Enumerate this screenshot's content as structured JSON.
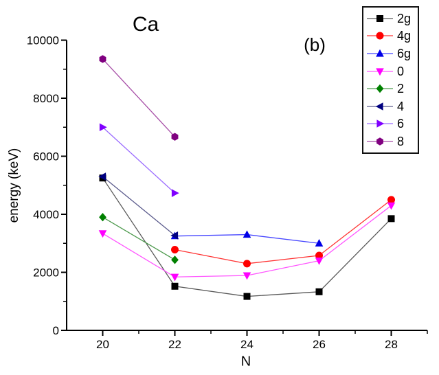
{
  "figure": {
    "title": "Ca",
    "panel_label": "(b)"
  },
  "chart_data": {
    "type": "line",
    "title": "Ca",
    "panel_label": "(b)",
    "xlabel": "N",
    "ylabel": "energy (keV)",
    "xlim": [
      19,
      29
    ],
    "ylim": [
      0,
      10000
    ],
    "grid": false,
    "legend_position": "top-right",
    "x_major_ticks": [
      20,
      22,
      24,
      26,
      28
    ],
    "x_minor_ticks": [
      21,
      23,
      25,
      27,
      29
    ],
    "y_major_ticks": [
      0,
      2000,
      4000,
      6000,
      8000,
      10000
    ],
    "y_minor_ticks": [
      1000,
      3000,
      5000,
      7000,
      9000
    ],
    "series": [
      {
        "name": "2g",
        "marker": "square",
        "color": "#000000",
        "line_color": "#595959",
        "x": [
          20,
          22,
          24,
          26,
          28
        ],
        "y": [
          5250,
          1520,
          1170,
          1330,
          3850
        ]
      },
      {
        "name": "4g",
        "marker": "circle",
        "color": "#ff0000",
        "line_color": "#ff3333",
        "x": [
          22,
          24,
          26,
          28
        ],
        "y": [
          2780,
          2300,
          2580,
          4500
        ]
      },
      {
        "name": "6g",
        "marker": "triangle-up",
        "color": "#0000e6",
        "line_color": "#4444ff",
        "x": [
          22,
          24,
          26
        ],
        "y": [
          3250,
          3300,
          3000
        ]
      },
      {
        "name": "0",
        "marker": "triangle-down",
        "color": "#ff00ff",
        "line_color": "#ff55ff",
        "x": [
          20,
          22,
          24,
          26,
          28
        ],
        "y": [
          3340,
          1840,
          1890,
          2400,
          4300
        ]
      },
      {
        "name": "2",
        "marker": "diamond",
        "color": "#008000",
        "line_color": "#4d9a4d",
        "x": [
          20,
          22
        ],
        "y": [
          3900,
          2430
        ]
      },
      {
        "name": "4",
        "marker": "triangle-left",
        "color": "#000080",
        "line_color": "#5a5a8c",
        "x": [
          20,
          22
        ],
        "y": [
          5300,
          3270
        ]
      },
      {
        "name": "6",
        "marker": "triangle-right",
        "color": "#8000ff",
        "line_color": "#9b6bff",
        "x": [
          20,
          22
        ],
        "y": [
          7000,
          4730
        ]
      },
      {
        "name": "8",
        "marker": "hexagon",
        "color": "#800080",
        "line_color": "#a64ca6",
        "x": [
          20,
          22
        ],
        "y": [
          9350,
          6670
        ]
      }
    ]
  }
}
